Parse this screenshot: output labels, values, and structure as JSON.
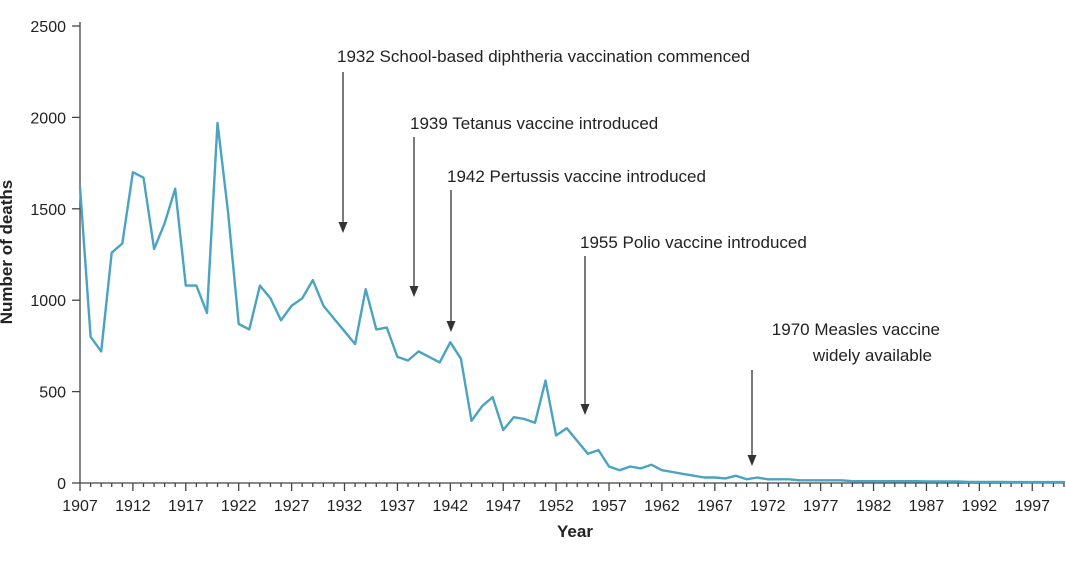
{
  "chart_data": {
    "type": "line",
    "title": "",
    "xlabel": "Year",
    "ylabel": "Number of deaths",
    "xlim": [
      1907,
      2000
    ],
    "ylim": [
      0,
      2500
    ],
    "x_ticks": [
      1907,
      1912,
      1917,
      1922,
      1927,
      1932,
      1937,
      1942,
      1947,
      1952,
      1957,
      1962,
      1967,
      1972,
      1977,
      1982,
      1987,
      1992,
      1997
    ],
    "y_ticks": [
      0,
      500,
      1000,
      1500,
      2000,
      2500
    ],
    "grid": false,
    "legend": "none",
    "series_color": "#4aa3c0",
    "series": [
      {
        "x": [
          1907,
          1908,
          1909,
          1910,
          1911,
          1912,
          1913,
          1914,
          1915,
          1916,
          1917,
          1918,
          1919,
          1920,
          1921,
          1922,
          1923,
          1924,
          1925,
          1926,
          1927,
          1928,
          1929,
          1930,
          1931,
          1932,
          1933,
          1934,
          1935,
          1936,
          1937,
          1938,
          1939,
          1940,
          1941,
          1942,
          1943,
          1944,
          1945,
          1946,
          1947,
          1948,
          1949,
          1950,
          1951,
          1952,
          1953,
          1954,
          1955,
          1956,
          1957,
          1958,
          1959,
          1960,
          1961,
          1962,
          1963,
          1964,
          1965,
          1966,
          1967,
          1968,
          1969,
          1970,
          1971,
          1972,
          1973,
          1974,
          1975,
          1976,
          1977,
          1978,
          1979,
          1980,
          1981,
          1982,
          1983,
          1984,
          1985,
          1986,
          1987,
          1988,
          1989,
          1990,
          1991,
          1992,
          1993,
          1994,
          1995,
          1996,
          1997,
          1998,
          1999,
          2000
        ],
        "values": [
          1620,
          800,
          720,
          1260,
          1310,
          1700,
          1670,
          1280,
          1420,
          1610,
          1080,
          1080,
          930,
          1970,
          1480,
          870,
          840,
          1080,
          1010,
          890,
          970,
          1010,
          1110,
          970,
          900,
          830,
          760,
          1060,
          840,
          850,
          690,
          670,
          720,
          690,
          660,
          770,
          680,
          340,
          420,
          470,
          290,
          360,
          350,
          330,
          560,
          260,
          300,
          230,
          160,
          180,
          90,
          70,
          90,
          80,
          100,
          70,
          60,
          50,
          40,
          30,
          30,
          25,
          40,
          20,
          30,
          20,
          20,
          20,
          15,
          15,
          15,
          15,
          15,
          10,
          10,
          10,
          10,
          10,
          10,
          10,
          8,
          8,
          8,
          8,
          6,
          6,
          6,
          6,
          5,
          5,
          5,
          5,
          5,
          5
        ]
      }
    ],
    "annotations": [
      {
        "text": "1932 School-based diphtheria vaccination commenced",
        "year": 1932
      },
      {
        "text": "1939 Tetanus vaccine introduced",
        "year": 1939
      },
      {
        "text": "1942 Pertussis vaccine introduced",
        "year": 1942
      },
      {
        "text": "1955 Polio vaccine introduced",
        "year": 1955
      },
      {
        "text": "1970 Measles vaccine",
        "text2": "widely available",
        "year": 1970
      }
    ]
  }
}
